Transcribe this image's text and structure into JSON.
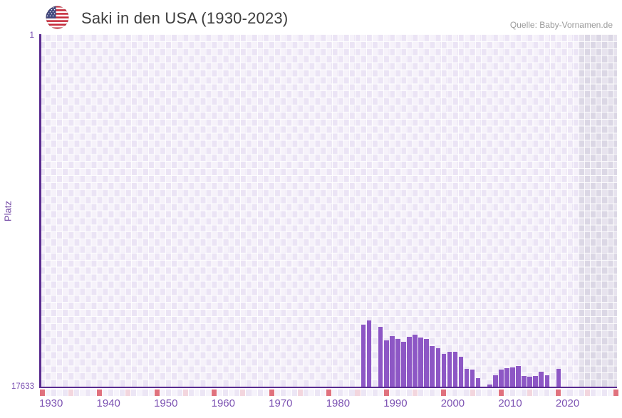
{
  "header": {
    "title": "Saki in den USA (1930-2023)",
    "source": "Quelle: Baby-Vornamen.de",
    "flag_icon": "us-flag-icon"
  },
  "axes": {
    "y_label": "Platz",
    "y_top_tick": "1",
    "y_bottom_tick": "17633",
    "x_ticks": [
      "1930",
      "1940",
      "1950",
      "1960",
      "1970",
      "1980",
      "1990",
      "2000",
      "2010",
      "2020"
    ]
  },
  "chart_data": {
    "type": "bar",
    "title": "Saki in den USA (1930-2023)",
    "xlabel": "",
    "ylabel": "Platz",
    "y_axis": {
      "top": 1,
      "bottom": 17633,
      "inverted": true
    },
    "x_range": [
      1930,
      2023
    ],
    "x_axis_drawn_until": 2030,
    "out_of_range_band_from": 2024,
    "grid": "checkerboard",
    "legend_position": "none",
    "points": [
      {
        "year": 1986,
        "rank": 14530
      },
      {
        "year": 1987,
        "rank": 14320
      },
      {
        "year": 1989,
        "rank": 14640
      },
      {
        "year": 1990,
        "rank": 15320
      },
      {
        "year": 1991,
        "rank": 15100
      },
      {
        "year": 1992,
        "rank": 15250
      },
      {
        "year": 1993,
        "rank": 15390
      },
      {
        "year": 1994,
        "rank": 15140
      },
      {
        "year": 1995,
        "rank": 15030
      },
      {
        "year": 1996,
        "rank": 15170
      },
      {
        "year": 1997,
        "rank": 15250
      },
      {
        "year": 1998,
        "rank": 15600
      },
      {
        "year": 1999,
        "rank": 15710
      },
      {
        "year": 2000,
        "rank": 15990
      },
      {
        "year": 2001,
        "rank": 15890
      },
      {
        "year": 2002,
        "rank": 15890
      },
      {
        "year": 2003,
        "rank": 16140
      },
      {
        "year": 2004,
        "rank": 16740
      },
      {
        "year": 2005,
        "rank": 16780
      },
      {
        "year": 2006,
        "rank": 17210
      },
      {
        "year": 2008,
        "rank": 17530
      },
      {
        "year": 2009,
        "rank": 17060
      },
      {
        "year": 2010,
        "rank": 16780
      },
      {
        "year": 2011,
        "rank": 16710
      },
      {
        "year": 2012,
        "rank": 16670
      },
      {
        "year": 2013,
        "rank": 16600
      },
      {
        "year": 2014,
        "rank": 17100
      },
      {
        "year": 2015,
        "rank": 17130
      },
      {
        "year": 2016,
        "rank": 17100
      },
      {
        "year": 2017,
        "rank": 16880
      },
      {
        "year": 2018,
        "rank": 17060
      },
      {
        "year": 2020,
        "rank": 16740
      }
    ]
  },
  "colors": {
    "bar": "#8d57c5",
    "axis_line": "#5a2c90",
    "tick_label": "#7d53b3",
    "y_axis_label": "#6b3fa0",
    "title_text": "#3e3e3e",
    "source_text": "#9a9a9a",
    "grid_cell_light": "#f6f2fa",
    "grid_cell_dark": "#ebe4f5",
    "out_of_range_cell_light": "#e7e3ee",
    "out_of_range_cell_dark": "#dbd7e5",
    "decade_marker": "#e0717d",
    "half_decade_marker": "#f3d6de",
    "marker_row_even": "#ece6f5",
    "marker_row_odd": "#f6f3fb"
  }
}
